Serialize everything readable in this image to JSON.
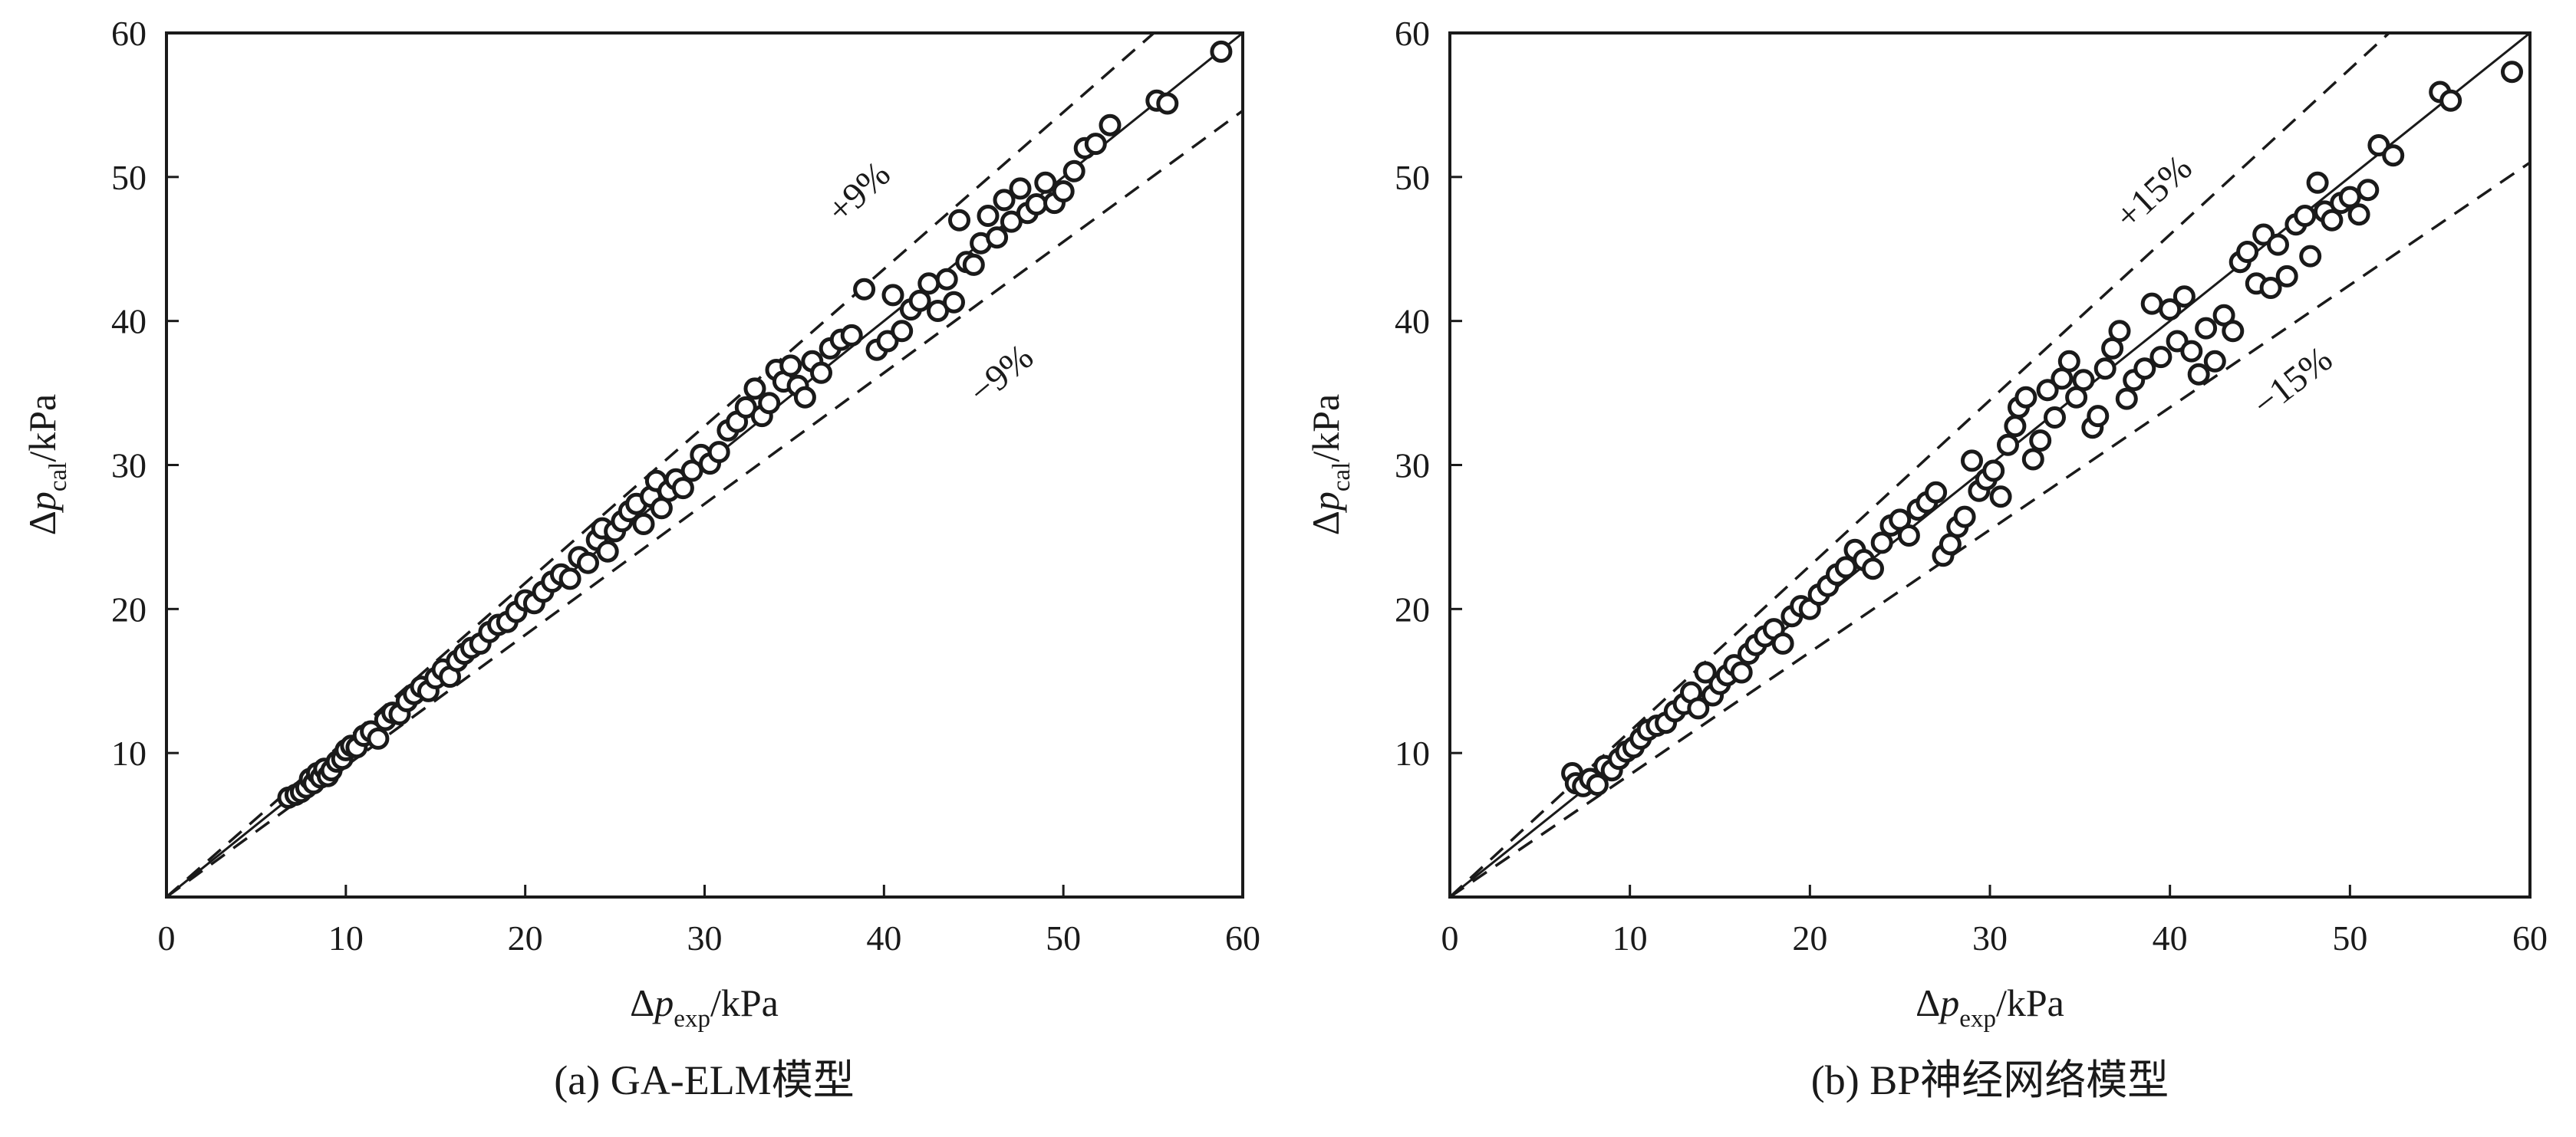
{
  "chart_data": [
    {
      "type": "scatter",
      "caption": "(a) GA-ELM模型",
      "xlabel": {
        "prefix": "Δ",
        "var": "p",
        "sub": "exp",
        "unit": "/kPa"
      },
      "ylabel": {
        "prefix": "Δ",
        "var": "p",
        "sub": "cal",
        "unit": "/kPa"
      },
      "xlim": [
        0,
        60
      ],
      "ylim": [
        0,
        60
      ],
      "xticks": [
        "0",
        "10",
        "20",
        "30",
        "40",
        "50",
        "60"
      ],
      "yticks": [
        "10",
        "20",
        "30",
        "40",
        "50",
        "60"
      ],
      "band_pct": 0.09,
      "band_upper_label": "+9%",
      "band_lower_label": "−9%",
      "grid": false,
      "colors": {
        "axis": "#1a1a1a",
        "marker_edge": "#1a1a1a",
        "marker_fill": "#ffffff"
      },
      "points": [
        [
          6.8,
          6.9
        ],
        [
          7.2,
          7.1
        ],
        [
          7.5,
          7.3
        ],
        [
          7.8,
          7.6
        ],
        [
          8.0,
          8.2
        ],
        [
          8.2,
          7.9
        ],
        [
          8.4,
          8.6
        ],
        [
          8.6,
          8.3
        ],
        [
          8.8,
          8.9
        ],
        [
          9.0,
          8.4
        ],
        [
          9.2,
          8.8
        ],
        [
          9.5,
          9.4
        ],
        [
          9.8,
          9.6
        ],
        [
          10.0,
          10.2
        ],
        [
          10.3,
          10.5
        ],
        [
          10.6,
          10.4
        ],
        [
          11.0,
          11.2
        ],
        [
          11.4,
          11.5
        ],
        [
          11.8,
          11.0
        ],
        [
          12.2,
          12.3
        ],
        [
          12.6,
          12.8
        ],
        [
          13.0,
          12.7
        ],
        [
          13.4,
          13.6
        ],
        [
          13.8,
          14.1
        ],
        [
          14.2,
          14.6
        ],
        [
          14.6,
          14.3
        ],
        [
          15.0,
          15.2
        ],
        [
          15.4,
          15.8
        ],
        [
          15.8,
          15.3
        ],
        [
          16.2,
          16.4
        ],
        [
          16.6,
          16.9
        ],
        [
          17.0,
          17.3
        ],
        [
          17.5,
          17.6
        ],
        [
          18.0,
          18.4
        ],
        [
          18.5,
          18.9
        ],
        [
          19.0,
          19.1
        ],
        [
          19.5,
          19.8
        ],
        [
          20.0,
          20.6
        ],
        [
          20.5,
          20.4
        ],
        [
          21.0,
          21.2
        ],
        [
          21.5,
          21.9
        ],
        [
          22.0,
          22.4
        ],
        [
          22.5,
          22.1
        ],
        [
          23.0,
          23.6
        ],
        [
          23.5,
          23.2
        ],
        [
          24.0,
          24.8
        ],
        [
          24.3,
          25.6
        ],
        [
          24.6,
          24.0
        ],
        [
          25.0,
          25.4
        ],
        [
          25.4,
          26.1
        ],
        [
          25.8,
          26.8
        ],
        [
          26.2,
          27.3
        ],
        [
          26.6,
          25.9
        ],
        [
          27.0,
          27.8
        ],
        [
          27.3,
          28.9
        ],
        [
          27.6,
          27.0
        ],
        [
          28.0,
          28.2
        ],
        [
          28.4,
          29.0
        ],
        [
          28.8,
          28.4
        ],
        [
          29.3,
          29.6
        ],
        [
          29.8,
          30.7
        ],
        [
          30.3,
          30.1
        ],
        [
          30.8,
          30.9
        ],
        [
          31.3,
          32.4
        ],
        [
          31.8,
          33.0
        ],
        [
          32.3,
          34.0
        ],
        [
          32.8,
          35.3
        ],
        [
          33.2,
          33.4
        ],
        [
          33.6,
          34.3
        ],
        [
          34.0,
          36.6
        ],
        [
          34.4,
          35.8
        ],
        [
          34.8,
          36.9
        ],
        [
          35.2,
          35.5
        ],
        [
          35.6,
          34.7
        ],
        [
          36.0,
          37.2
        ],
        [
          36.5,
          36.4
        ],
        [
          37.0,
          38.1
        ],
        [
          37.6,
          38.7
        ],
        [
          38.2,
          39.0
        ],
        [
          38.9,
          42.2
        ],
        [
          39.6,
          38.0
        ],
        [
          40.2,
          38.6
        ],
        [
          40.5,
          41.8
        ],
        [
          41.0,
          39.3
        ],
        [
          41.5,
          40.8
        ],
        [
          42.0,
          41.4
        ],
        [
          42.5,
          42.6
        ],
        [
          43.0,
          40.7
        ],
        [
          43.5,
          42.9
        ],
        [
          43.9,
          41.3
        ],
        [
          44.2,
          47.0
        ],
        [
          44.6,
          44.1
        ],
        [
          45.0,
          43.9
        ],
        [
          45.4,
          45.4
        ],
        [
          45.8,
          47.3
        ],
        [
          46.3,
          45.8
        ],
        [
          46.7,
          48.4
        ],
        [
          47.1,
          46.9
        ],
        [
          47.6,
          49.2
        ],
        [
          48.0,
          47.5
        ],
        [
          48.5,
          48.1
        ],
        [
          49.0,
          49.6
        ],
        [
          49.5,
          48.2
        ],
        [
          50.0,
          49.0
        ],
        [
          50.6,
          50.4
        ],
        [
          51.2,
          52.0
        ],
        [
          51.8,
          52.3
        ],
        [
          52.6,
          53.6
        ],
        [
          55.2,
          55.3
        ],
        [
          55.8,
          55.1
        ],
        [
          58.8,
          58.7
        ]
      ]
    },
    {
      "type": "scatter",
      "caption": "(b) BP神经网络模型",
      "xlabel": {
        "prefix": "Δ",
        "var": "p",
        "sub": "exp",
        "unit": "/kPa"
      },
      "ylabel": {
        "prefix": "Δ",
        "var": "p",
        "sub": "cal",
        "unit": "/kPa"
      },
      "xlim": [
        0,
        60
      ],
      "ylim": [
        0,
        60
      ],
      "xticks": [
        "0",
        "10",
        "20",
        "30",
        "40",
        "50",
        "60"
      ],
      "yticks": [
        "10",
        "20",
        "30",
        "40",
        "50",
        "60"
      ],
      "band_pct": 0.15,
      "band_upper_label": "+15%",
      "band_lower_label": "−15%",
      "grid": false,
      "colors": {
        "axis": "#1a1a1a",
        "marker_edge": "#1a1a1a",
        "marker_fill": "#ffffff"
      },
      "points": [
        [
          6.8,
          8.6
        ],
        [
          7.0,
          7.9
        ],
        [
          7.4,
          7.7
        ],
        [
          7.8,
          8.2
        ],
        [
          8.2,
          7.8
        ],
        [
          8.6,
          9.1
        ],
        [
          9.0,
          8.8
        ],
        [
          9.4,
          9.6
        ],
        [
          9.8,
          10.1
        ],
        [
          10.2,
          10.4
        ],
        [
          10.6,
          11.0
        ],
        [
          11.0,
          11.6
        ],
        [
          11.5,
          11.9
        ],
        [
          12.0,
          12.1
        ],
        [
          12.5,
          12.9
        ],
        [
          13.0,
          13.4
        ],
        [
          13.4,
          14.2
        ],
        [
          13.8,
          13.1
        ],
        [
          14.2,
          15.6
        ],
        [
          14.6,
          14.0
        ],
        [
          15.0,
          14.8
        ],
        [
          15.4,
          15.4
        ],
        [
          15.8,
          16.1
        ],
        [
          16.2,
          15.6
        ],
        [
          16.6,
          16.9
        ],
        [
          17.0,
          17.5
        ],
        [
          17.5,
          18.1
        ],
        [
          18.0,
          18.6
        ],
        [
          18.5,
          17.6
        ],
        [
          19.0,
          19.5
        ],
        [
          19.5,
          20.2
        ],
        [
          20.0,
          20.0
        ],
        [
          20.5,
          21.0
        ],
        [
          21.0,
          21.6
        ],
        [
          21.5,
          22.4
        ],
        [
          22.0,
          22.9
        ],
        [
          22.5,
          24.1
        ],
        [
          23.0,
          23.4
        ],
        [
          23.5,
          22.8
        ],
        [
          24.0,
          24.6
        ],
        [
          24.5,
          25.8
        ],
        [
          25.0,
          26.2
        ],
        [
          25.5,
          25.1
        ],
        [
          26.0,
          26.9
        ],
        [
          26.5,
          27.4
        ],
        [
          27.0,
          28.1
        ],
        [
          27.4,
          23.7
        ],
        [
          27.8,
          24.5
        ],
        [
          28.2,
          25.7
        ],
        [
          28.6,
          26.4
        ],
        [
          29.0,
          30.3
        ],
        [
          29.4,
          28.2
        ],
        [
          29.8,
          29.0
        ],
        [
          30.2,
          29.6
        ],
        [
          30.6,
          27.8
        ],
        [
          31.0,
          31.4
        ],
        [
          31.4,
          32.7
        ],
        [
          31.6,
          34.0
        ],
        [
          32.0,
          34.7
        ],
        [
          32.4,
          30.4
        ],
        [
          32.8,
          31.7
        ],
        [
          33.2,
          35.2
        ],
        [
          33.6,
          33.3
        ],
        [
          34.0,
          36.0
        ],
        [
          34.4,
          37.2
        ],
        [
          34.8,
          34.7
        ],
        [
          35.2,
          35.9
        ],
        [
          35.7,
          32.6
        ],
        [
          36.0,
          33.4
        ],
        [
          36.4,
          36.7
        ],
        [
          36.8,
          38.1
        ],
        [
          37.2,
          39.3
        ],
        [
          37.6,
          34.6
        ],
        [
          38.0,
          35.9
        ],
        [
          38.6,
          36.7
        ],
        [
          39.0,
          41.2
        ],
        [
          39.5,
          37.5
        ],
        [
          40.0,
          40.8
        ],
        [
          40.4,
          38.6
        ],
        [
          40.8,
          41.7
        ],
        [
          41.2,
          37.9
        ],
        [
          41.6,
          36.3
        ],
        [
          42.0,
          39.5
        ],
        [
          42.5,
          37.2
        ],
        [
          43.0,
          40.4
        ],
        [
          43.5,
          39.3
        ],
        [
          43.9,
          44.1
        ],
        [
          44.3,
          44.8
        ],
        [
          44.8,
          42.6
        ],
        [
          45.2,
          46.0
        ],
        [
          45.6,
          42.3
        ],
        [
          46.0,
          45.3
        ],
        [
          46.5,
          43.1
        ],
        [
          47.0,
          46.7
        ],
        [
          47.5,
          47.3
        ],
        [
          47.8,
          44.5
        ],
        [
          48.2,
          49.6
        ],
        [
          48.6,
          47.6
        ],
        [
          49.0,
          47.0
        ],
        [
          49.5,
          48.2
        ],
        [
          50.0,
          48.6
        ],
        [
          50.5,
          47.4
        ],
        [
          51.0,
          49.1
        ],
        [
          51.6,
          52.2
        ],
        [
          52.4,
          51.5
        ],
        [
          55.0,
          55.9
        ],
        [
          55.6,
          55.3
        ],
        [
          59.0,
          57.3
        ]
      ]
    }
  ]
}
